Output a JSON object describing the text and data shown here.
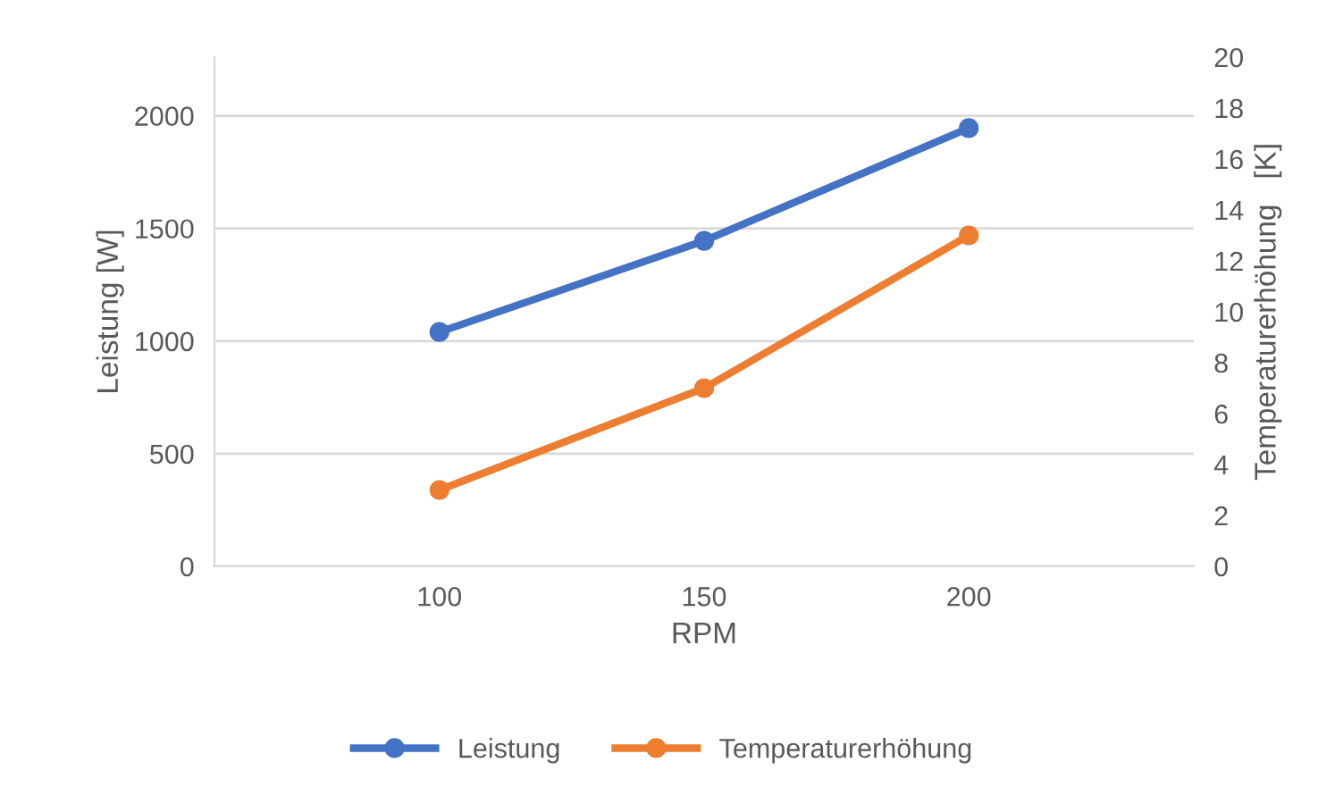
{
  "chart_data": {
    "type": "line",
    "xlabel": "RPM",
    "ylabel": "Leistung [W]",
    "y2label": "Temperaturerhöhung   [K]",
    "categories": [
      "100",
      "150",
      "200"
    ],
    "series": [
      {
        "name": "Leistung",
        "color": "#4472c4",
        "values": [
          1040,
          1445,
          1945
        ]
      },
      {
        "name": "Temperaturerhöhung",
        "color": "#ed7d31",
        "values": [
          3.0,
          7.0,
          13.0
        ],
        "axis": "y2"
      }
    ],
    "ylim": [
      0,
      2260
    ],
    "yticks": [
      0,
      500,
      1000,
      1500,
      2000
    ],
    "y2lim": [
      0,
      20
    ],
    "y2ticks": [
      0,
      2,
      4,
      6,
      8,
      10,
      12,
      14,
      16,
      18,
      20
    ],
    "grid": "y",
    "legend": "bottom",
    "marker": "circle",
    "line_style": "solid"
  }
}
